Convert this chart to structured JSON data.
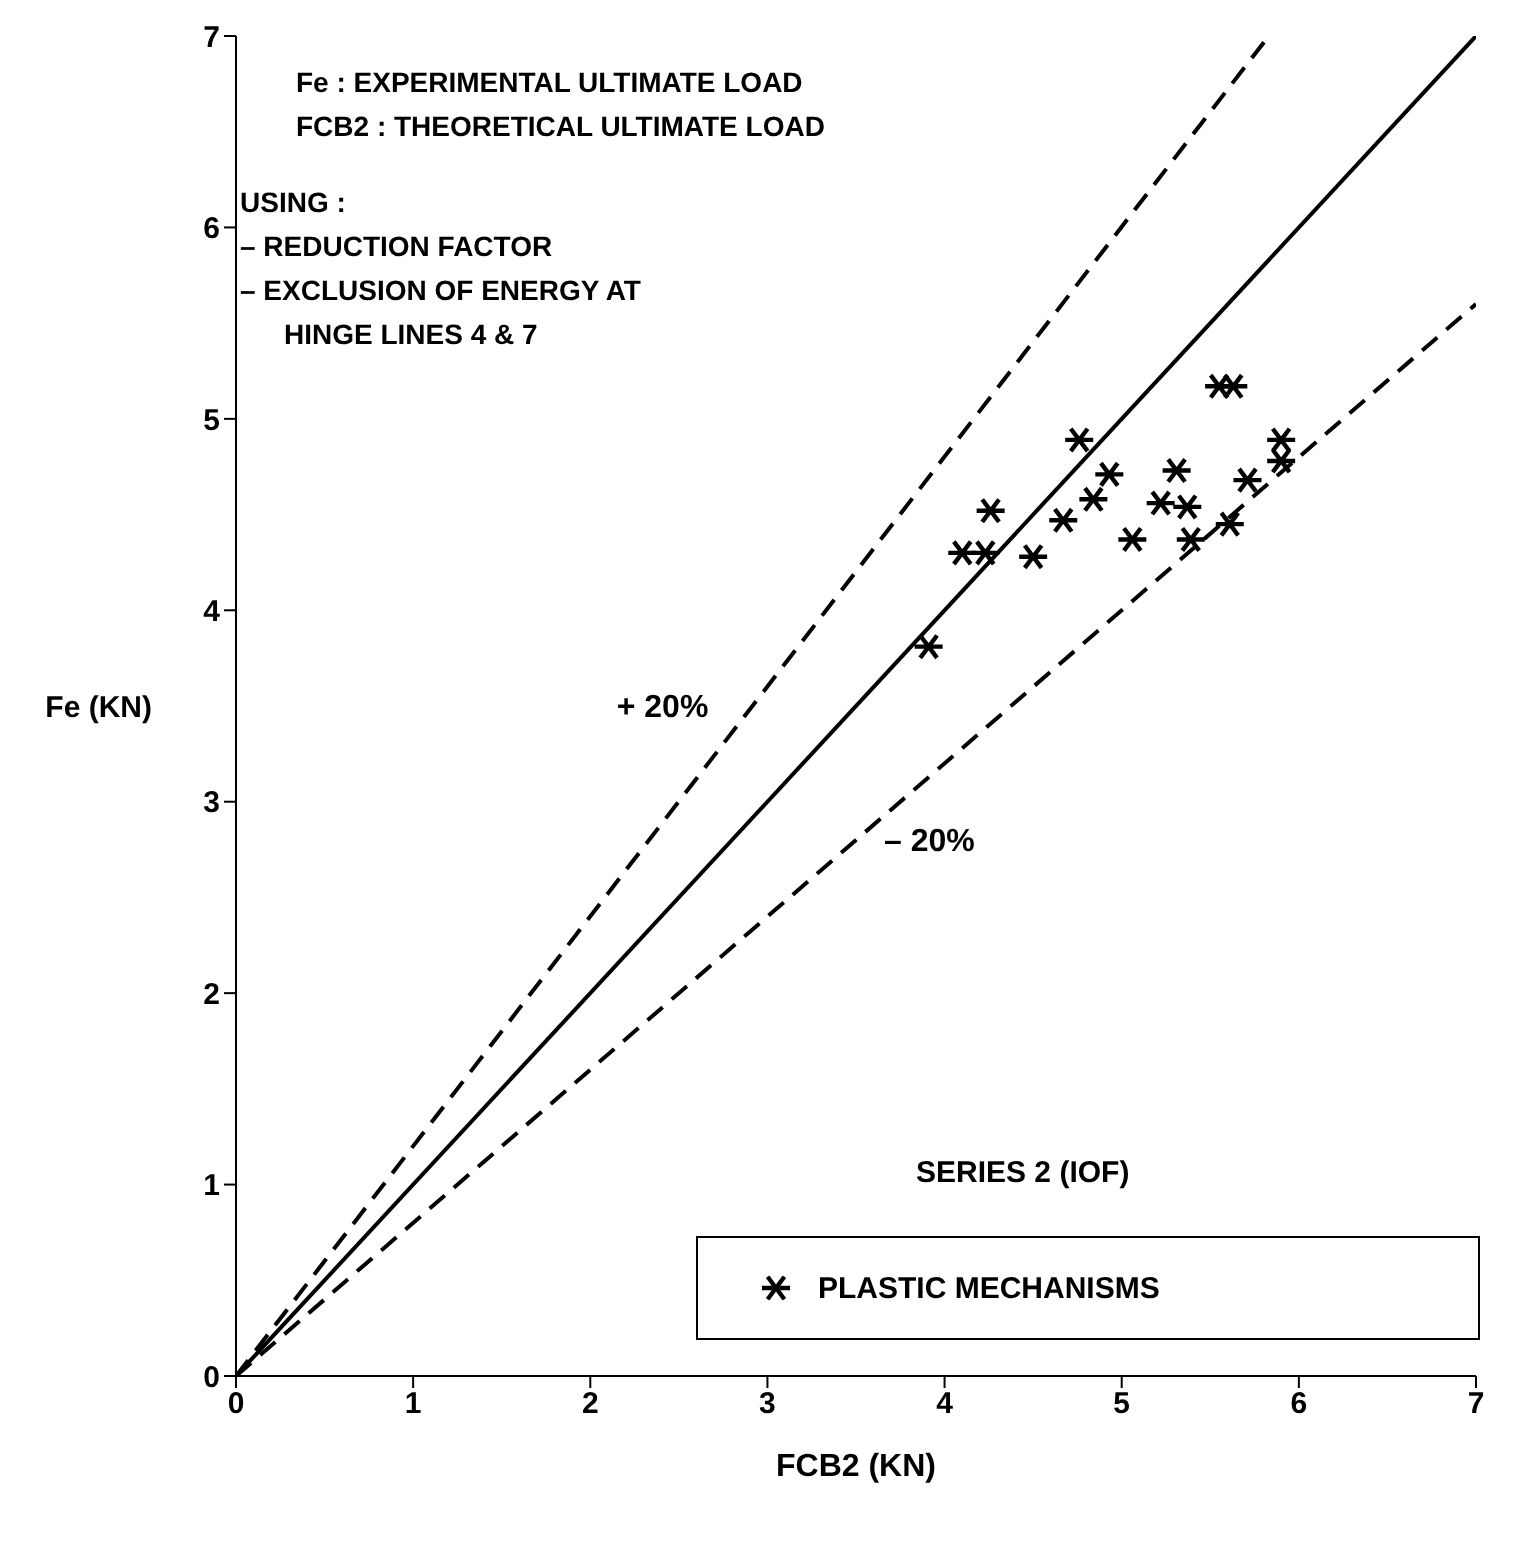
{
  "chart_data": {
    "type": "scatter",
    "xlabel": "FCB2 (KN)",
    "ylabel": "Fe (KN)",
    "legend_title": "SERIES 2 (IOF)",
    "legend": "bottom right",
    "grid": false,
    "xlim": [
      0,
      7
    ],
    "ylim": [
      0,
      7
    ],
    "xticks": [
      0,
      1,
      2,
      3,
      4,
      5,
      6,
      7
    ],
    "yticks": [
      0,
      1,
      2,
      3,
      4,
      5,
      6,
      7
    ],
    "annotations": [
      "Fe : EXPERIMENTAL ULTIMATE LOAD",
      "FCB2 : THEORETICAL ULTIMATE LOAD",
      "USING :",
      "– REDUCTION FACTOR",
      "– EXCLUSION OF ENERGY AT",
      "HINGE LINES 4 & 7"
    ],
    "series": [
      {
        "name": "PLASTIC MECHANISMS",
        "marker": "cross",
        "color": "#000000",
        "x": [
          3.91,
          4.1,
          4.23,
          4.26,
          4.5,
          4.67,
          4.76,
          4.84,
          4.93,
          5.06,
          5.22,
          5.31,
          5.37,
          5.39,
          5.55,
          5.63,
          5.61,
          5.71,
          5.9,
          5.9
        ],
        "values": [
          3.81,
          4.3,
          4.3,
          4.52,
          4.28,
          4.47,
          4.89,
          4.58,
          4.71,
          4.37,
          4.56,
          4.73,
          4.54,
          4.37,
          5.17,
          5.17,
          4.45,
          4.68,
          4.89,
          4.78
        ]
      },
      {
        "type": "line",
        "line_style": "solid",
        "color": "#000000",
        "x": [
          0,
          7
        ],
        "values": [
          0,
          7
        ]
      },
      {
        "name": "+ 20%",
        "type": "line",
        "line_style": "dashed",
        "color": "#000000",
        "x": [
          0,
          5.83
        ],
        "values": [
          0,
          7
        ]
      },
      {
        "name": "– 20%",
        "type": "line",
        "line_style": "dashed",
        "color": "#000000",
        "x": [
          0,
          7
        ],
        "values": [
          0,
          5.6
        ]
      }
    ]
  }
}
